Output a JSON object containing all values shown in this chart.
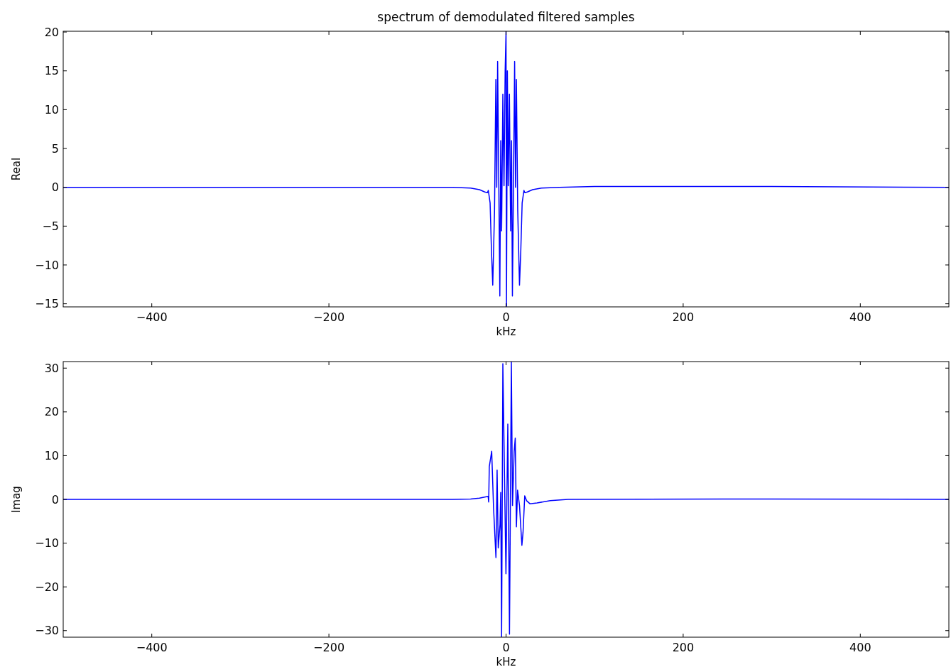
{
  "chart_data": [
    {
      "type": "line",
      "title": "spectrum of demodulated filtered samples",
      "xlabel": "kHz",
      "ylabel": "Real",
      "xlim": [
        -500,
        500
      ],
      "ylim": [
        -15.4,
        20.1
      ],
      "xticks": [
        -400,
        -200,
        0,
        200,
        400
      ],
      "yticks": [
        -15,
        -10,
        -5,
        0,
        5,
        10,
        15,
        20
      ],
      "grid": false,
      "marker": "none",
      "line_style": "solid",
      "series": [
        {
          "color": "#0000ff",
          "x": [
            -500,
            -100,
            -60,
            -40,
            -30,
            -24,
            -21,
            -20,
            -18,
            -16.5,
            -15,
            -13,
            -11.5,
            -10.5,
            -9.5,
            -7,
            -6,
            -5,
            -3.6,
            -2.3,
            -1,
            0,
            0.5,
            1.5,
            2.5,
            3.8,
            5.2,
            6.2,
            7.2,
            9.7,
            10.7,
            11.7,
            13.2,
            15.2,
            16.7,
            18.2,
            20.2,
            21.2,
            24,
            30,
            40,
            60,
            100,
            300,
            500
          ],
          "values": [
            0,
            0,
            0,
            -0.1,
            -0.3,
            -0.6,
            -0.7,
            -0.4,
            -2,
            -8,
            -12.6,
            -3,
            13.9,
            0,
            16.2,
            -14,
            6,
            -5.6,
            12,
            0.2,
            15,
            20.1,
            -15.3,
            15,
            0.2,
            12,
            -5.6,
            6,
            -14,
            16.2,
            0,
            13.9,
            -3,
            -12.6,
            -8,
            -2,
            -0.4,
            -0.7,
            -0.6,
            -0.3,
            -0.1,
            0,
            0.1,
            0.1,
            0
          ]
        }
      ]
    },
    {
      "type": "line",
      "xlabel": "kHz",
      "ylabel": "Imag",
      "xlim": [
        -500,
        500
      ],
      "ylim": [
        -31.5,
        31.5
      ],
      "xticks": [
        -400,
        -200,
        0,
        200,
        400
      ],
      "yticks": [
        -30,
        -20,
        -10,
        0,
        10,
        20,
        30
      ],
      "grid": false,
      "marker": "none",
      "line_style": "solid",
      "series": [
        {
          "color": "#0000ff",
          "x": [
            -500,
            -100,
            -60,
            -40,
            -30,
            -20.2,
            -19.6,
            -18.9,
            -16.2,
            -14.1,
            -11.4,
            -10.1,
            -8.8,
            -6.8,
            -6,
            -5,
            -3.6,
            -0.1,
            2,
            3.9,
            6,
            7.3,
            9.2,
            10.4,
            11.7,
            13,
            15.2,
            17.9,
            19.2,
            21.1,
            23.2,
            27,
            35,
            50,
            70,
            300,
            500
          ],
          "values": [
            0,
            0,
            0,
            0.1,
            0.3,
            0.7,
            -0.6,
            7.5,
            11,
            -1.9,
            -13.3,
            6.7,
            -11.1,
            -5.7,
            1.6,
            -31.4,
            31,
            -17,
            17.2,
            -30.8,
            31.4,
            -1.4,
            11,
            14,
            -6.3,
            2.1,
            -1.4,
            -10.5,
            -7.5,
            0.8,
            -0.3,
            -1,
            -0.8,
            -0.3,
            0,
            0.1,
            0
          ]
        }
      ]
    }
  ]
}
